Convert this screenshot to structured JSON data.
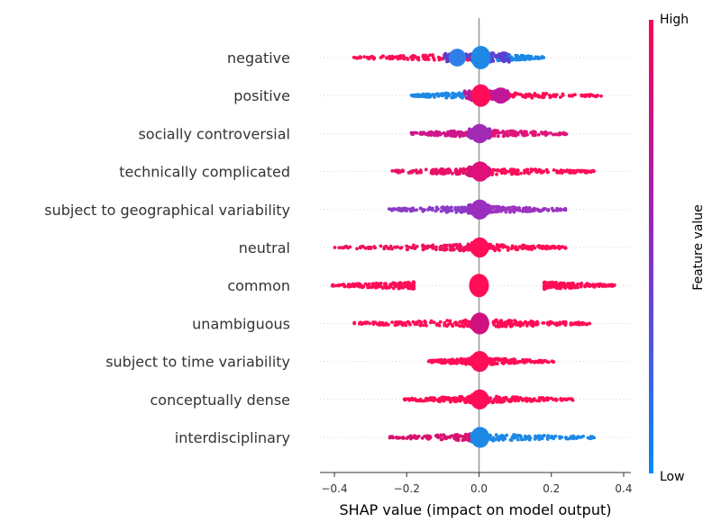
{
  "chart_data": {
    "type": "scatter",
    "subtype": "shap-beeswarm",
    "title": "",
    "xlabel": "SHAP value (impact on model output)",
    "xlim": [
      -0.44,
      0.42
    ],
    "xticks": [
      -0.4,
      -0.2,
      0.0,
      0.2,
      0.4
    ],
    "xtick_labels": [
      "−0.4",
      "−0.2",
      "0.0",
      "0.2",
      "0.4"
    ],
    "zero_line": true,
    "colorbar": {
      "label": "Feature value",
      "high_label": "High",
      "low_label": "Low",
      "high_color": "#ff0052",
      "mid_color": "#8a2cc8",
      "low_color": "#008bfb"
    },
    "features": [
      {
        "name": "negative",
        "pos": {
          "range": [
            0.05,
            0.18
          ],
          "color": "#1e88e5"
        },
        "neg": {
          "range": [
            -0.35,
            0.0
          ],
          "color": "#ff0d57"
        },
        "core": {
          "center": -0.005,
          "spread": 0.09,
          "color": "#5a3fd0"
        },
        "bulges": [
          {
            "x": -0.06,
            "h": 0.65,
            "color": "#2f7fe8"
          },
          {
            "x": 0.005,
            "h": 1.0,
            "color": "#1e88e5"
          }
        ]
      },
      {
        "name": "positive",
        "pos": {
          "range": [
            0.0,
            0.34
          ],
          "color": "#ff0d57"
        },
        "neg": {
          "range": [
            -0.19,
            0.0
          ],
          "color": "#1e88e5"
        },
        "core": {
          "center": 0.02,
          "spread": 0.06,
          "color": "#c0169a"
        },
        "bulges": [
          {
            "x": 0.005,
            "h": 0.95,
            "color": "#ff0d57"
          },
          {
            "x": 0.06,
            "h": 0.55,
            "color": "#c0169a"
          }
        ]
      },
      {
        "name": "socially controversial",
        "pos": {
          "range": [
            0.0,
            0.25
          ],
          "color": "#e0157a"
        },
        "neg": {
          "range": [
            -0.19,
            0.0
          ],
          "color": "#d0158a"
        },
        "core": {
          "center": 0.0,
          "spread": 0.03,
          "color": "#a12bb5"
        },
        "bulges": [
          {
            "x": 0.002,
            "h": 0.75,
            "color": "#a12bb5"
          }
        ]
      },
      {
        "name": "technically complicated",
        "pos": {
          "range": [
            0.0,
            0.32
          ],
          "color": "#ff0d57"
        },
        "neg": {
          "range": [
            -0.24,
            0.0
          ],
          "color": "#e81067"
        },
        "core": {
          "center": 0.0,
          "spread": 0.03,
          "color": "#d4127a"
        },
        "bulges": [
          {
            "x": 0.003,
            "h": 0.8,
            "color": "#e0107a"
          }
        ]
      },
      {
        "name": "subject to geographical variability",
        "pos": {
          "range": [
            0.0,
            0.24
          ],
          "color": "#9c34c0"
        },
        "neg": {
          "range": [
            -0.25,
            0.0
          ],
          "color": "#8a3cc8"
        },
        "core": {
          "center": 0.0,
          "spread": 0.03,
          "color": "#9a2fbf"
        },
        "bulges": [
          {
            "x": 0.002,
            "h": 0.8,
            "color": "#9a2fbf"
          }
        ]
      },
      {
        "name": "neutral",
        "pos": {
          "range": [
            0.0,
            0.24
          ],
          "color": "#ff0d57"
        },
        "neg": {
          "range": [
            -0.4,
            0.0
          ],
          "color": "#f01060"
        },
        "core": {
          "center": 0.0,
          "spread": 0.02,
          "color": "#ff0d57"
        },
        "bulges": [
          {
            "x": 0.002,
            "h": 0.8,
            "color": "#ff0d57"
          }
        ]
      },
      {
        "name": "common",
        "pos": {
          "range": [
            0.18,
            0.38
          ],
          "color": "#ff0d57"
        },
        "neg": {
          "range": [
            -0.41,
            -0.18
          ],
          "color": "#ff0d57"
        },
        "core": {
          "center": 0.0,
          "spread": 0.02,
          "color": "#ff0d57"
        },
        "bulges": [
          {
            "x": 0.0,
            "h": 1.0,
            "color": "#ff0d57"
          }
        ]
      },
      {
        "name": "unambiguous",
        "pos": {
          "range": [
            0.04,
            0.31
          ],
          "color": "#ff0d57"
        },
        "neg": {
          "range": [
            -0.35,
            0.0
          ],
          "color": "#ff0d57"
        },
        "core": {
          "center": 0.0,
          "spread": 0.02,
          "color": "#d01280"
        },
        "bulges": [
          {
            "x": 0.002,
            "h": 0.9,
            "color": "#d01280"
          }
        ]
      },
      {
        "name": "subject to time variability",
        "pos": {
          "range": [
            0.0,
            0.21
          ],
          "color": "#ff0d57"
        },
        "neg": {
          "range": [
            -0.14,
            0.0
          ],
          "color": "#ff0d57"
        },
        "core": {
          "center": 0.0,
          "spread": 0.02,
          "color": "#ff0d57"
        },
        "bulges": [
          {
            "x": 0.002,
            "h": 0.85,
            "color": "#ff0d57"
          }
        ]
      },
      {
        "name": "conceptually dense",
        "pos": {
          "range": [
            0.0,
            0.26
          ],
          "color": "#ff0d57"
        },
        "neg": {
          "range": [
            -0.21,
            0.0
          ],
          "color": "#ff0d57"
        },
        "core": {
          "center": 0.0,
          "spread": 0.02,
          "color": "#ff0d57"
        },
        "bulges": [
          {
            "x": 0.002,
            "h": 0.8,
            "color": "#ff0d57"
          }
        ]
      },
      {
        "name": "interdisciplinary",
        "pos": {
          "range": [
            0.0,
            0.32
          ],
          "color": "#1e88e5"
        },
        "neg": {
          "range": [
            -0.25,
            0.0
          ],
          "color": "#d8126f"
        },
        "core": {
          "center": 0.0,
          "spread": 0.02,
          "color": "#1e88e5"
        },
        "bulges": [
          {
            "x": 0.003,
            "h": 0.85,
            "color": "#1e88e5"
          }
        ]
      }
    ]
  }
}
